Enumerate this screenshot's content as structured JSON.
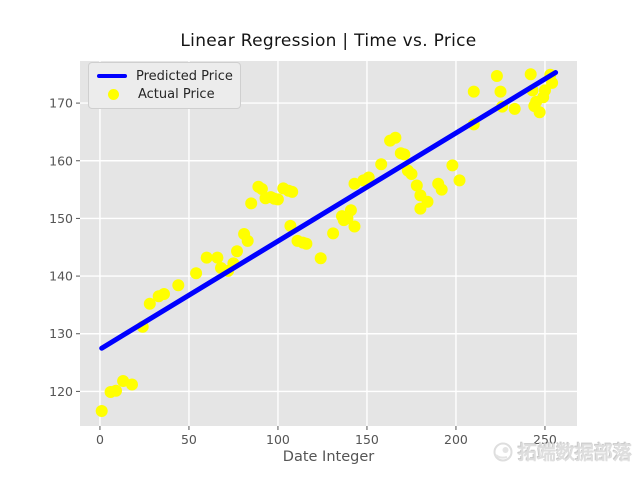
{
  "title": "Linear Regression | Time vs. Price",
  "xlabel": "Date Integer",
  "legend": {
    "predicted": "Predicted Price",
    "actual": "Actual Price"
  },
  "watermark": "拓端数据部落",
  "colors": {
    "line": "#0000ff",
    "scatter": "#ffff00",
    "plot_bg": "#e5e5e5",
    "grid": "#ffffff",
    "tick_text": "#555555",
    "title_text": "#141414",
    "watermark": "#dedede"
  },
  "chart_data": {
    "type": "scatter",
    "title": "Linear Regression | Time vs. Price",
    "xlabel": "Date Integer",
    "ylabel": "",
    "xlim": [
      -11.2,
      268
    ],
    "ylim": [
      114,
      177.3
    ],
    "xticks": [
      0,
      50,
      100,
      150,
      200,
      250
    ],
    "yticks": [
      120,
      130,
      140,
      150,
      160,
      170
    ],
    "grid": true,
    "legend_position": "upper left",
    "series": [
      {
        "name": "Predicted Price",
        "type": "line",
        "color": "#0000ff",
        "x": [
          1,
          256
        ],
        "y": [
          127.5,
          175.3
        ]
      },
      {
        "name": "Actual Price",
        "type": "scatter",
        "color": "#ffff00",
        "points": [
          [
            1,
            116.6
          ],
          [
            6,
            119.9
          ],
          [
            9,
            120.1
          ],
          [
            13,
            121.8
          ],
          [
            18,
            121.2
          ],
          [
            24,
            131.2
          ],
          [
            28,
            135.2
          ],
          [
            33,
            136.5
          ],
          [
            36,
            136.9
          ],
          [
            44,
            138.4
          ],
          [
            54,
            140.5
          ],
          [
            60,
            143.2
          ],
          [
            66,
            143.2
          ],
          [
            68,
            141.4
          ],
          [
            72,
            140.9
          ],
          [
            75,
            142.2
          ],
          [
            77,
            144.3
          ],
          [
            81,
            147.3
          ],
          [
            83,
            146.1
          ],
          [
            85,
            152.6
          ],
          [
            89,
            155.5
          ],
          [
            91,
            155.1
          ],
          [
            93,
            153.5
          ],
          [
            96,
            153.7
          ],
          [
            98,
            153.4
          ],
          [
            100,
            153.3
          ],
          [
            103,
            155.2
          ],
          [
            106,
            154.8
          ],
          [
            108,
            154.6
          ],
          [
            107,
            148.7
          ],
          [
            111,
            146.1
          ],
          [
            114,
            145.8
          ],
          [
            116,
            145.6
          ],
          [
            124,
            143.1
          ],
          [
            131,
            147.4
          ],
          [
            136,
            150.4
          ],
          [
            137,
            149.7
          ],
          [
            139,
            150.0
          ],
          [
            141,
            151.4
          ],
          [
            143,
            148.6
          ],
          [
            143,
            156.0
          ],
          [
            148,
            156.6
          ],
          [
            151,
            157.1
          ],
          [
            158,
            159.4
          ],
          [
            163,
            163.5
          ],
          [
            166,
            164.0
          ],
          [
            169,
            161.3
          ],
          [
            171,
            161.1
          ],
          [
            173,
            158.3
          ],
          [
            175,
            157.7
          ],
          [
            178,
            155.7
          ],
          [
            180,
            154.0
          ],
          [
            180,
            151.7
          ],
          [
            184,
            152.9
          ],
          [
            190,
            156.0
          ],
          [
            192,
            155.0
          ],
          [
            198,
            159.2
          ],
          [
            202,
            156.6
          ],
          [
            210,
            166.3
          ],
          [
            210,
            172.0
          ],
          [
            223,
            174.7
          ],
          [
            225,
            172.0
          ],
          [
            226,
            169.4
          ],
          [
            233,
            169.0
          ],
          [
            242,
            175.0
          ],
          [
            243,
            172.2
          ],
          [
            244,
            169.5
          ],
          [
            245,
            170.2
          ],
          [
            247,
            168.4
          ],
          [
            249,
            171.0
          ],
          [
            250,
            172.2
          ],
          [
            253,
            174.9
          ],
          [
            254,
            173.5
          ]
        ]
      }
    ]
  }
}
